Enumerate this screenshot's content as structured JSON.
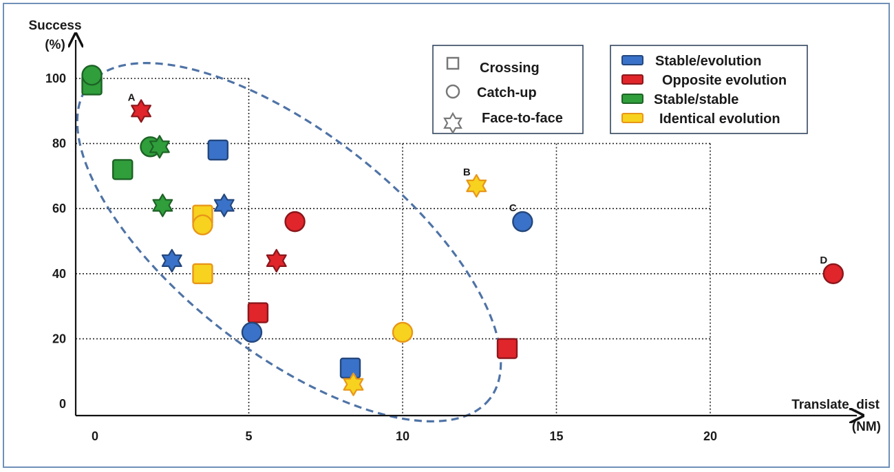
{
  "chart_data": {
    "type": "scatter",
    "title": "",
    "xlabel": "Translate_dist",
    "xlabel_unit": "(NM)",
    "ylabel": "Success",
    "ylabel_unit": "(%)",
    "xlim": [
      -0.6,
      24.6
    ],
    "ylim": [
      -3,
      106
    ],
    "x_ticks": [
      0,
      5,
      10,
      15,
      20
    ],
    "y_ticks": [
      0,
      20,
      40,
      60,
      80,
      100
    ],
    "grid": "dotted",
    "shape_legend": [
      {
        "label": "Crossing",
        "marker": "square"
      },
      {
        "label": "Catch-up",
        "marker": "circle"
      },
      {
        "label": "Face-to-face",
        "marker": "star"
      }
    ],
    "color_legend": [
      {
        "label": "Stable/evolution",
        "color": "#3a72c9"
      },
      {
        "label": "Opposite evolution",
        "color": "#e0252b"
      },
      {
        "label": "Stable/stable",
        "color": "#2f9e3b"
      },
      {
        "label": "Identical evolution",
        "color": "#f7d21e"
      }
    ],
    "points": [
      {
        "x": -0.1,
        "y": 98,
        "marker": "square",
        "category": "Stable/stable"
      },
      {
        "x": -0.1,
        "y": 101,
        "marker": "circle",
        "category": "Stable/stable"
      },
      {
        "x": 1.5,
        "y": 90,
        "marker": "star",
        "category": "Opposite evolution",
        "label": "A"
      },
      {
        "x": 1.8,
        "y": 79,
        "marker": "circle",
        "category": "Stable/stable"
      },
      {
        "x": 2.1,
        "y": 79,
        "marker": "star",
        "category": "Stable/stable"
      },
      {
        "x": 0.9,
        "y": 72,
        "marker": "square",
        "category": "Stable/stable"
      },
      {
        "x": 4.0,
        "y": 78,
        "marker": "square",
        "category": "Stable/evolution"
      },
      {
        "x": 2.2,
        "y": 61,
        "marker": "star",
        "category": "Stable/stable"
      },
      {
        "x": 4.2,
        "y": 61,
        "marker": "star",
        "category": "Stable/evolution"
      },
      {
        "x": 3.5,
        "y": 58,
        "marker": "square",
        "category": "Identical evolution"
      },
      {
        "x": 3.5,
        "y": 55,
        "marker": "circle",
        "category": "Identical evolution"
      },
      {
        "x": 6.5,
        "y": 56,
        "marker": "circle",
        "category": "Opposite evolution"
      },
      {
        "x": 2.5,
        "y": 44,
        "marker": "star",
        "category": "Stable/evolution"
      },
      {
        "x": 5.9,
        "y": 44,
        "marker": "star",
        "category": "Opposite evolution"
      },
      {
        "x": 3.5,
        "y": 40,
        "marker": "square",
        "category": "Identical evolution"
      },
      {
        "x": 5.3,
        "y": 28,
        "marker": "square",
        "category": "Opposite evolution"
      },
      {
        "x": 5.1,
        "y": 22,
        "marker": "circle",
        "category": "Stable/evolution"
      },
      {
        "x": 8.3,
        "y": 11,
        "marker": "square",
        "category": "Stable/evolution"
      },
      {
        "x": 8.4,
        "y": 6,
        "marker": "star",
        "category": "Identical evolution"
      },
      {
        "x": 10.0,
        "y": 22,
        "marker": "circle",
        "category": "Identical evolution"
      },
      {
        "x": 13.4,
        "y": 17,
        "marker": "square",
        "category": "Opposite evolution"
      },
      {
        "x": 12.4,
        "y": 67,
        "marker": "star",
        "category": "Identical evolution",
        "label": "B"
      },
      {
        "x": 13.9,
        "y": 56,
        "marker": "circle",
        "category": "Stable/evolution",
        "label": "C"
      },
      {
        "x": 24.0,
        "y": 40,
        "marker": "circle",
        "category": "Opposite evolution",
        "label": "D"
      }
    ]
  }
}
